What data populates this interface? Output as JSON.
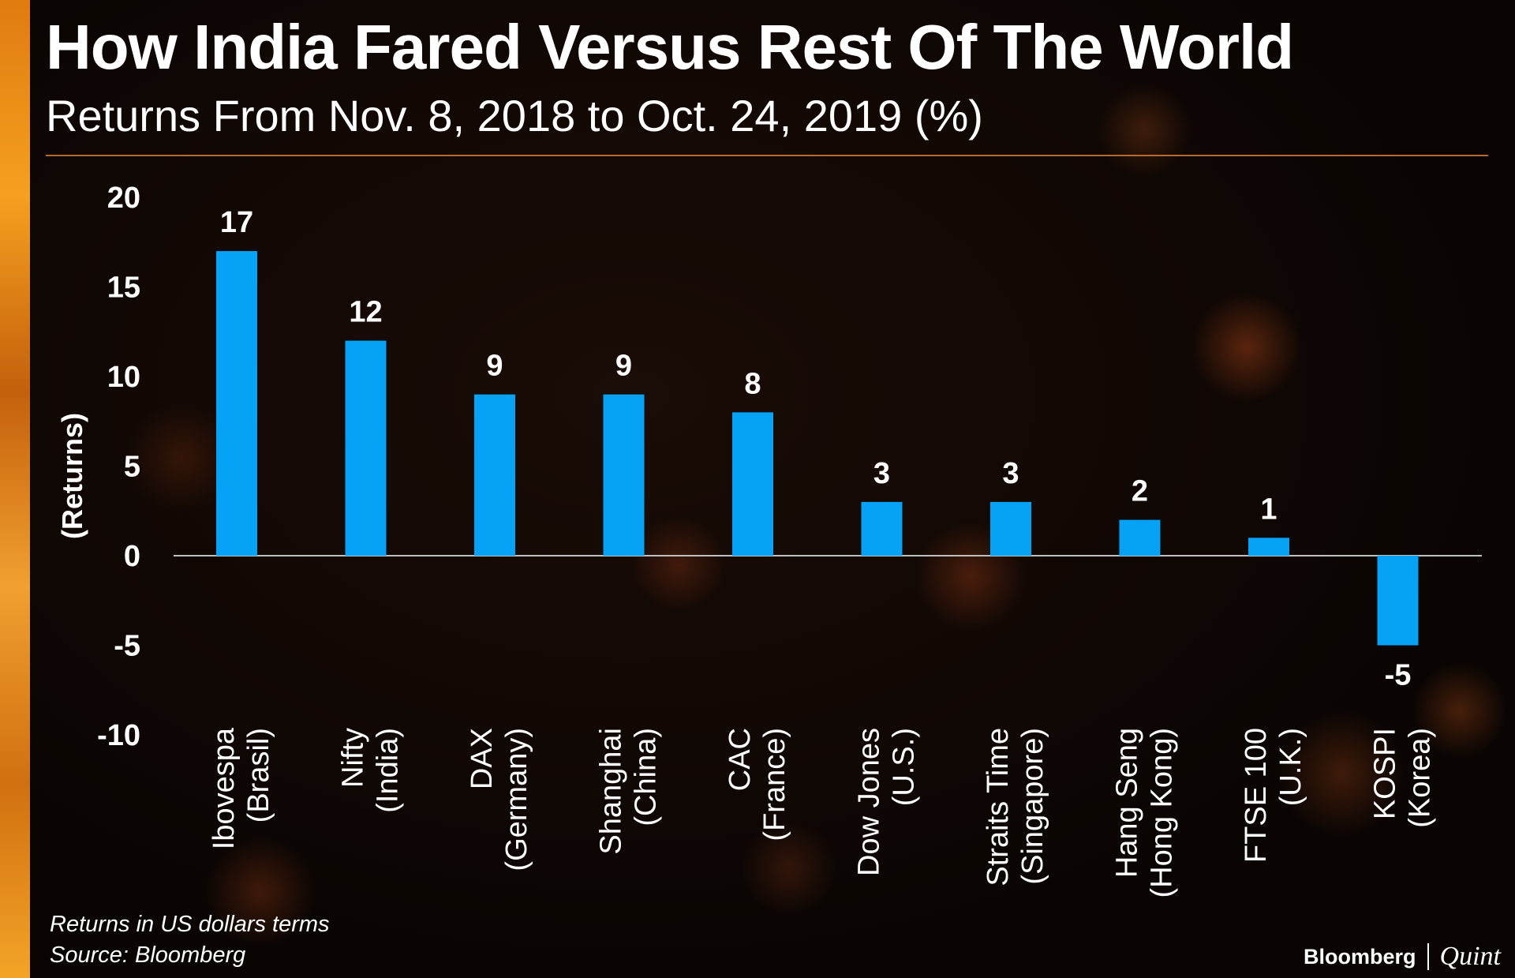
{
  "header": {
    "title": "How India Fared Versus Rest Of The World",
    "subtitle": "Returns From Nov. 8, 2018 to Oct. 24, 2019 (%)"
  },
  "footer": {
    "note": "Returns in US dollars terms",
    "source": "Source: Bloomberg",
    "logo_left": "Bloomberg",
    "logo_right": "Quint"
  },
  "colors": {
    "bar": "#06a2f5",
    "text": "#ffffff",
    "zero_line": "#bfbfbf",
    "accent": "#e07b10"
  },
  "chart_data": {
    "type": "bar",
    "title": "How India Fared Versus Rest Of The World",
    "subtitle": "Returns From Nov. 8, 2018 to Oct. 24, 2019 (%)",
    "xlabel": "",
    "ylabel": "(Returns)",
    "ylim": [
      -10,
      20
    ],
    "yticks": [
      20,
      15,
      10,
      5,
      0,
      -5,
      -10
    ],
    "grid": false,
    "categories": [
      {
        "line1": "Ibovespa",
        "line2": "(Brasil)"
      },
      {
        "line1": "Nifty",
        "line2": "(India)"
      },
      {
        "line1": "DAX",
        "line2": "(Germany)"
      },
      {
        "line1": "Shanghai",
        "line2": "(China)"
      },
      {
        "line1": "CAC",
        "line2": "(France)"
      },
      {
        "line1": "Dow Jones",
        "line2": "(U.S.)"
      },
      {
        "line1": "Straits Time",
        "line2": "(Singapore)"
      },
      {
        "line1": "Hang Seng",
        "line2": "(Hong Kong)"
      },
      {
        "line1": "FTSE 100",
        "line2": "(U.K.)"
      },
      {
        "line1": "KOSPI",
        "line2": "(Korea)"
      }
    ],
    "values": [
      17,
      12,
      9,
      9,
      8,
      3,
      3,
      2,
      1,
      -5
    ]
  }
}
